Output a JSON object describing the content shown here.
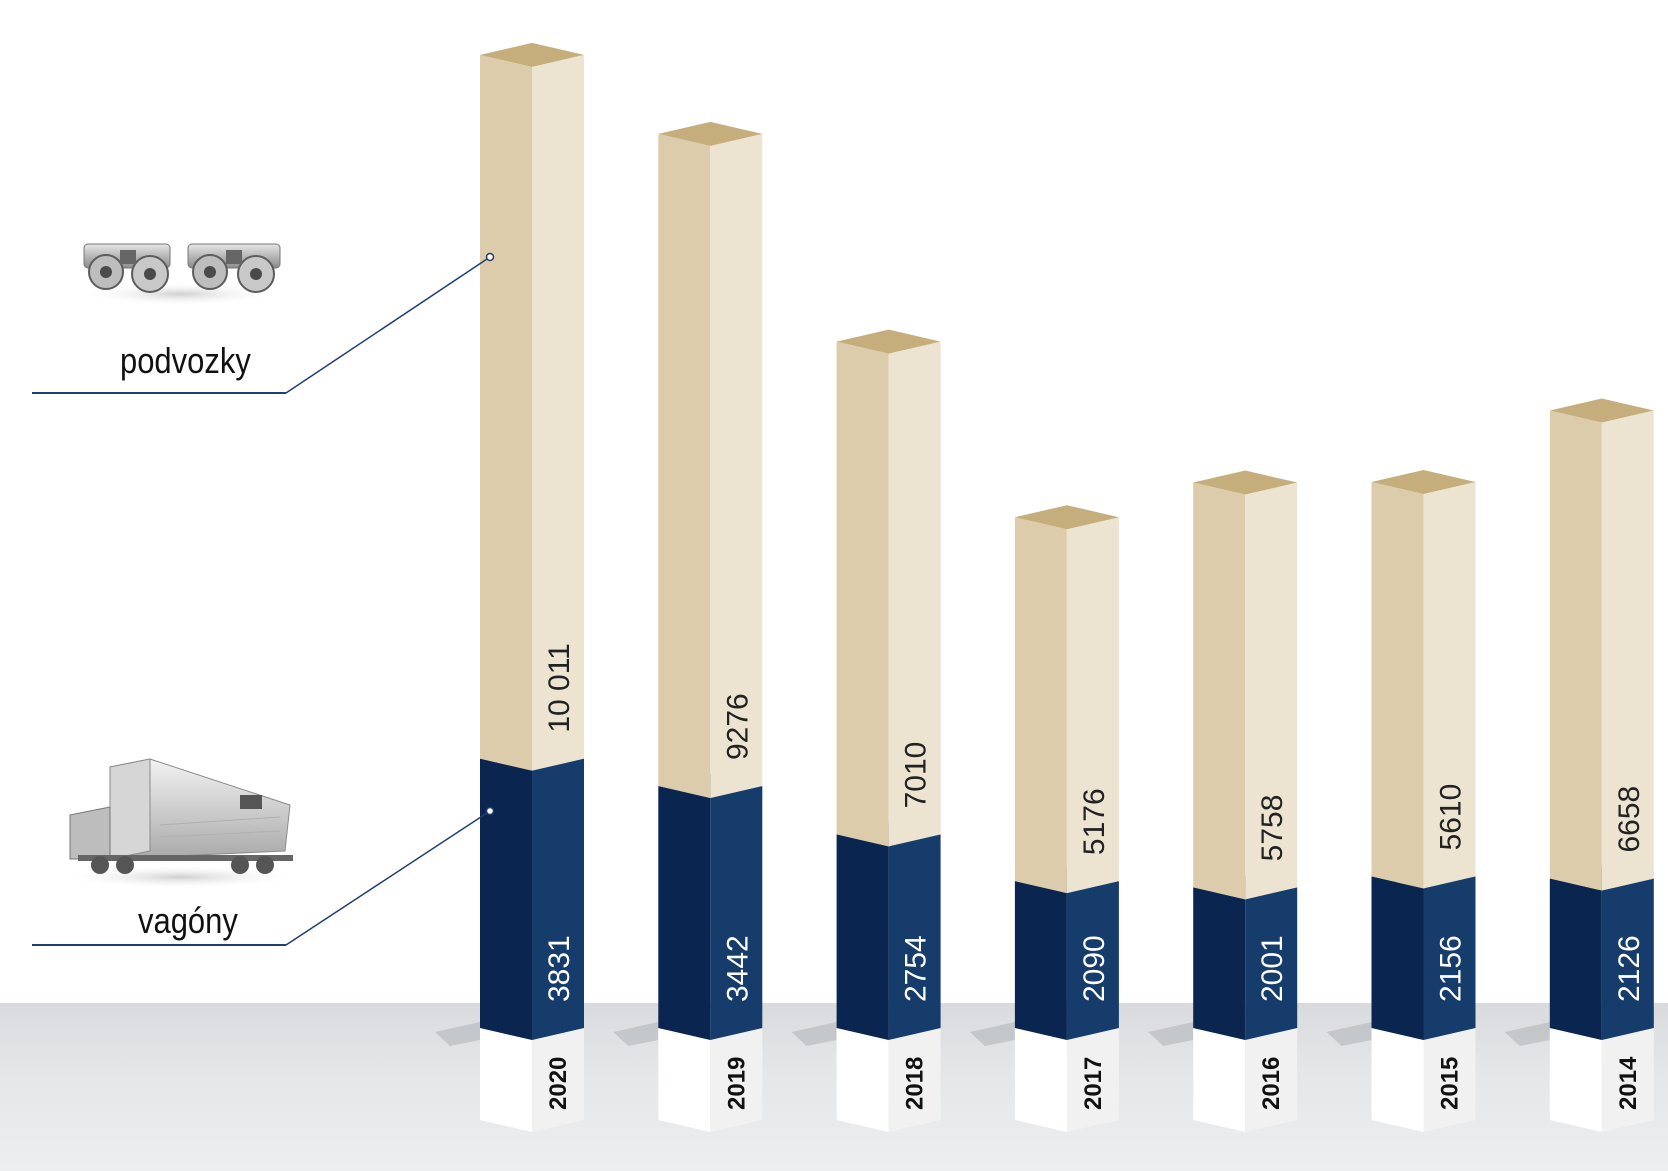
{
  "chart_data": {
    "type": "bar",
    "stacked": true,
    "style": "3d-columns",
    "categories": [
      "2020",
      "2019",
      "2018",
      "2017",
      "2016",
      "2015",
      "2014"
    ],
    "series": [
      {
        "name": "vagóny",
        "values": [
          3831,
          3442,
          2754,
          2090,
          2001,
          2156,
          2126
        ]
      },
      {
        "name": "podvozky",
        "values": [
          10011,
          9276,
          7010,
          5176,
          5758,
          5610,
          6658
        ]
      }
    ],
    "value_labels": {
      "vagony": [
        "3831",
        "3442",
        "2754",
        "2090",
        "2001",
        "2156",
        "2126"
      ],
      "podvozky": [
        "10 011",
        "9276",
        "7010",
        "5176",
        "5758",
        "5610",
        "6658"
      ]
    },
    "colors": {
      "vagony_front": "#0a2650",
      "vagony_side": "#163c6c",
      "vagony_top": "#1e5a90",
      "podvozky_front": "#ddccab",
      "podvozky_side": "#ece3d1",
      "podvozky_top": "#c5ae7c",
      "base_front": "#ffffff",
      "base_side": "#f1f1f1"
    }
  },
  "legend": {
    "podvozky": {
      "label": "podvozky",
      "icon": "bogie-icon"
    },
    "vagony": {
      "label": "vagóny",
      "icon": "hopper-wagon-icon"
    }
  }
}
